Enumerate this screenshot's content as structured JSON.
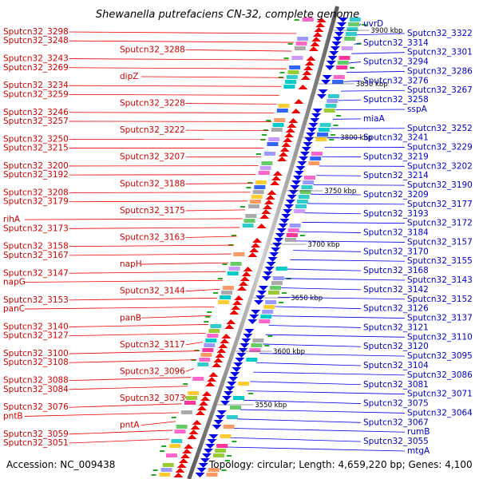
{
  "title": "Shewanella putrefaciens CN-32, complete genome",
  "accession": "Accession: NC_009438",
  "summary": "Topology: circular; Length: 4,659,220 bp; Genes: 4,100",
  "kbp_marks": [
    "3900 kbp",
    "3850 kbp",
    "3800 kbp",
    "3750 kbp",
    "3700 kbp",
    "3650 kbp",
    "3600 kbp",
    "3550 kbp"
  ],
  "left_labels": [
    "Sputcn32_3298",
    "Sputcn32_3248",
    "Sputcn32_3288",
    "Sputcn32_3243",
    "Sputcn32_3269",
    "dipZ",
    "Sputcn32_3234",
    "Sputcn32_3259",
    "Sputcn32_3228",
    "Sputcn32_3246",
    "Sputcn32_3257",
    "Sputcn32_3222",
    "Sputcn32_3250",
    "Sputcn32_3215",
    "Sputcn32_3207",
    "Sputcn32_3200",
    "Sputcn32_3192",
    "Sputcn32_3188",
    "Sputcn32_3208",
    "Sputcn32_3179",
    "Sputcn32_3175",
    "rihA",
    "Sputcn32_3173",
    "Sputcn32_3163",
    "Sputcn32_3158",
    "Sputcn32_3167",
    "napH",
    "Sputcn32_3147",
    "napG",
    "Sputcn32_3144",
    "Sputcn32_3153",
    "panC",
    "panB",
    "Sputcn32_3140",
    "Sputcn32_3127",
    "Sputcn32_3117",
    "Sputcn32_3100",
    "Sputcn32_3108",
    "Sputcn32_3096",
    "Sputcn32_3088",
    "Sputcn32_3084",
    "Sputcn32_3073",
    "Sputcn32_3076",
    "pntB",
    "pntA",
    "Sputcn32_3059",
    "Sputcn32_3051"
  ],
  "right_labels": [
    "uvrD",
    "Sputcn32_3322",
    "Sputcn32_3314",
    "Sputcn32_3301",
    "Sputcn32_3294",
    "Sputcn32_3286",
    "Sputcn32_3276",
    "Sputcn32_3267",
    "Sputcn32_3258",
    "sspA",
    "miaA",
    "Sputcn32_3252",
    "Sputcn32_3241",
    "Sputcn32_3229",
    "Sputcn32_3219",
    "Sputcn32_3202",
    "Sputcn32_3214",
    "Sputcn32_3190",
    "Sputcn32_3209",
    "Sputcn32_3177",
    "Sputcn32_3193",
    "Sputcn32_3172",
    "Sputcn32_3184",
    "Sputcn32_3157",
    "Sputcn32_3170",
    "Sputcn32_3155",
    "Sputcn32_3168",
    "Sputcn32_3143",
    "Sputcn32_3142",
    "Sputcn32_3152",
    "Sputcn32_3126",
    "Sputcn32_3137",
    "Sputcn32_3121",
    "Sputcn32_3110",
    "Sputcn32_3120",
    "Sputcn32_3095",
    "Sputcn32_3104",
    "Sputcn32_3086",
    "Sputcn32_3081",
    "Sputcn32_3071",
    "Sputcn32_3075",
    "Sputcn32_3064",
    "Sputcn32_3067",
    "rumB",
    "Sputcn32_3055",
    "mtgA"
  ],
  "colors": {
    "forward": "#ee0000",
    "reverse": "#0000ee",
    "backbone": "#888888",
    "tick": "#22aa22"
  }
}
